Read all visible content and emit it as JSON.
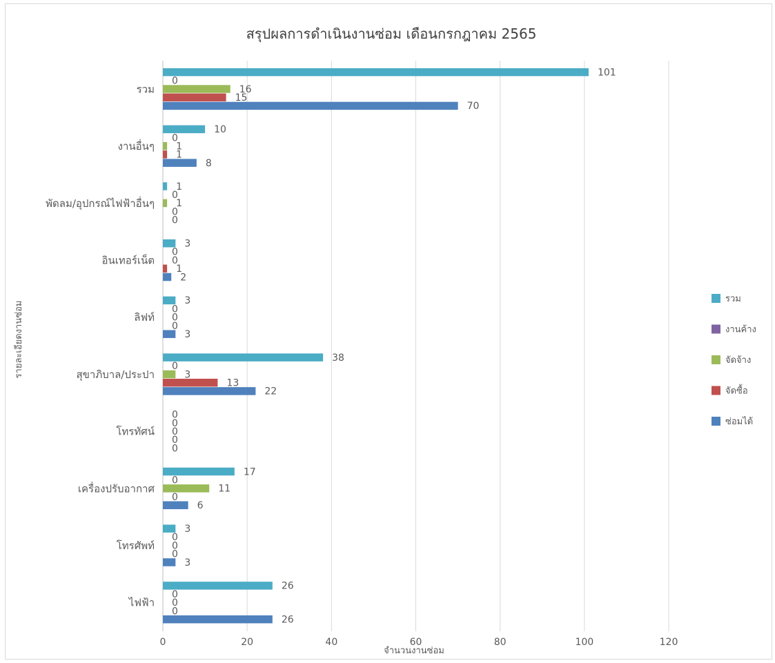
{
  "chart_data": {
    "type": "bar",
    "orientation": "horizontal",
    "title": "สรุปผลการดำเนินงานซ่อม เดือนกรกฎาคม 2565",
    "xlabel": "จำนวนงานซ่อม",
    "ylabel": "รายละเอียดงานซ่อม",
    "xlim": [
      0,
      120
    ],
    "xticks": [
      0,
      20,
      40,
      60,
      80,
      100,
      120
    ],
    "grid": true,
    "legend_position": "right",
    "categories": [
      "รวม",
      "งานอื่นๆ",
      "พัดลม/อุปกรณ์ไฟฟ้าอื่นๆ",
      "อินเทอร์เน็ต",
      "ลิฟท์",
      "สุขาภิบาล/ประปา",
      "โทรทัศน์",
      "เครื่องปรับอากาศ",
      "โทรศัพท์",
      "ไฟฟ้า"
    ],
    "series": [
      {
        "name": "รวม",
        "color": "#4bacc6",
        "values": [
          101,
          10,
          1,
          3,
          3,
          38,
          0,
          17,
          3,
          26
        ]
      },
      {
        "name": "งานค้าง",
        "color": "#8064a2",
        "values": [
          0,
          0,
          0,
          0,
          0,
          0,
          0,
          0,
          0,
          0
        ]
      },
      {
        "name": "จัดจ้าง",
        "color": "#9bbb59",
        "values": [
          16,
          1,
          1,
          0,
          0,
          3,
          0,
          11,
          0,
          0
        ]
      },
      {
        "name": "จัดซื้อ",
        "color": "#c0504d",
        "values": [
          15,
          1,
          0,
          1,
          0,
          13,
          0,
          0,
          0,
          0
        ]
      },
      {
        "name": "ซ่อมได้",
        "color": "#4f81bd",
        "values": [
          70,
          8,
          0,
          2,
          3,
          22,
          0,
          6,
          3,
          26
        ]
      }
    ]
  }
}
